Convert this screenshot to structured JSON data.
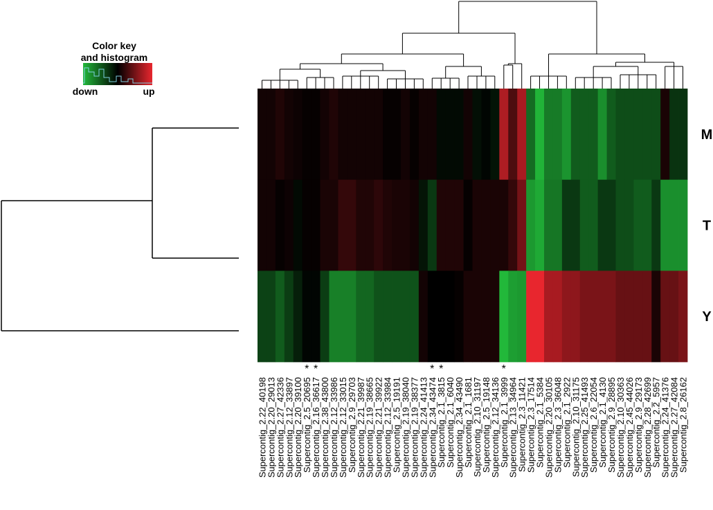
{
  "chart_data": {
    "type": "heatmap",
    "title": "",
    "xlabel": "",
    "ylabel": "",
    "color_key": {
      "title": "Color key and histogram",
      "low_label": "down",
      "high_label": "up",
      "low_color": "#22b83a",
      "mid_color": "#000000",
      "high_color": "#e8262e"
    },
    "rows": [
      "M",
      "T",
      "Y"
    ],
    "columns": [
      "Supercontig_2.22_40198",
      "Supercontig_2.20_29013",
      "Supercontig_2.27_42336",
      "Supercontig_2.12_33897",
      "Supercontig_2.20_39100",
      "Supercontig_2.5_20695",
      "Supercontig_2.16_36617",
      "Supercontig_2.38_43800",
      "Supercontig_2.12_33986",
      "Supercontig_2.12_33015",
      "Supercontig_2.9_29703",
      "Supercontig_2.21_39987",
      "Supercontig_2.19_38665",
      "Supercontig_2.21_39922",
      "Supercontig_2.12_33984",
      "Supercontig_2.5_19191",
      "Supercontig_2.19_38040",
      "Supercontig_2.19_38377",
      "Supercontig_2.24_41413",
      "Supercontig_2.34_43474",
      "Supercontig_2.1_3815",
      "Supercontig_2.1_6040",
      "Supercontig_2.34_43490",
      "Supercontig_2.1_1681",
      "Supercontig_2.10_31197",
      "Supercontig_2.5_19148",
      "Supercontig_2.12_34136",
      "Supercontig_2.1_3999",
      "Supercontig_2.13_34964",
      "Supercontig_2.3_11421",
      "Supercontig_2.3_17514",
      "Supercontig_2.1_5384",
      "Supercontig_2.20_30105",
      "Supercontig_2.3_36048",
      "Supercontig_2.1_2922",
      "Supercontig_2.10_31175",
      "Supercontig_2.25_41493",
      "Supercontig_2.6_22054",
      "Supercontig_2.1_4130",
      "Supercontig_2.9_28895",
      "Supercontig_2.10_30363",
      "Supercontig_2.45_44026",
      "Supercontig_2.9_29173",
      "Supercontig_2.28_42699",
      "Supercontig_2.2_5957",
      "Supercontig_2.24_41376",
      "Supercontig_2.27_42084",
      "Supercontig_2.8_26162"
    ],
    "marked_columns": [
      5,
      6,
      19,
      20,
      27
    ],
    "marker": "*",
    "values": [
      [
        0.3,
        0.3,
        0.5,
        0.3,
        0.2,
        0.1,
        0.1,
        0.3,
        0.5,
        0.3,
        0.3,
        0.3,
        0.3,
        0.3,
        0.1,
        0.1,
        0.3,
        0.1,
        0.3,
        0.3,
        -0.2,
        -0.2,
        -0.2,
        0.3,
        -0.3,
        -0.1,
        -0.4,
        2.7,
        1.2,
        2.6,
        -2.1,
        -3.5,
        -2.4,
        -2.4,
        -2.9,
        -1.8,
        -1.8,
        -1.8,
        -2.8,
        -1.8,
        -1.5,
        -1.5,
        -1.5,
        -1.5,
        -1.5,
        0.4,
        -1.0,
        -1.0
      ],
      [
        0.3,
        0.3,
        0.1,
        0.2,
        -0.2,
        0.1,
        0.1,
        0.4,
        0.4,
        0.8,
        0.8,
        0.5,
        0.5,
        0.7,
        0.5,
        0.4,
        0.4,
        0.3,
        -0.4,
        -1.1,
        0.5,
        0.5,
        0.5,
        0.1,
        0.4,
        0.4,
        0.4,
        0.4,
        0.8,
        1.8,
        -3.0,
        -3.3,
        -2.3,
        -2.3,
        -1.1,
        -1.1,
        -1.8,
        -1.8,
        -1.1,
        -1.1,
        -1.5,
        -1.5,
        -1.8,
        -1.8,
        -1.1,
        -2.8,
        -2.8,
        -2.8
      ],
      [
        -1.3,
        -1.3,
        -1.8,
        -1.2,
        -0.6,
        -0.1,
        -0.1,
        -1.2,
        -2.5,
        -2.5,
        -2.5,
        -2.0,
        -2.0,
        -1.6,
        -1.6,
        -1.6,
        -1.6,
        -1.6,
        0.3,
        0.0,
        0.0,
        0.0,
        0.1,
        0.4,
        0.4,
        0.4,
        0.4,
        -3.6,
        -3.1,
        -3.0,
        3.6,
        3.6,
        2.6,
        2.6,
        2.2,
        2.2,
        1.9,
        1.9,
        1.9,
        1.9,
        1.6,
        1.6,
        1.6,
        1.6,
        0.4,
        1.6,
        1.6,
        1.9
      ]
    ],
    "value_range": [
      -3.6,
      3.6
    ]
  }
}
